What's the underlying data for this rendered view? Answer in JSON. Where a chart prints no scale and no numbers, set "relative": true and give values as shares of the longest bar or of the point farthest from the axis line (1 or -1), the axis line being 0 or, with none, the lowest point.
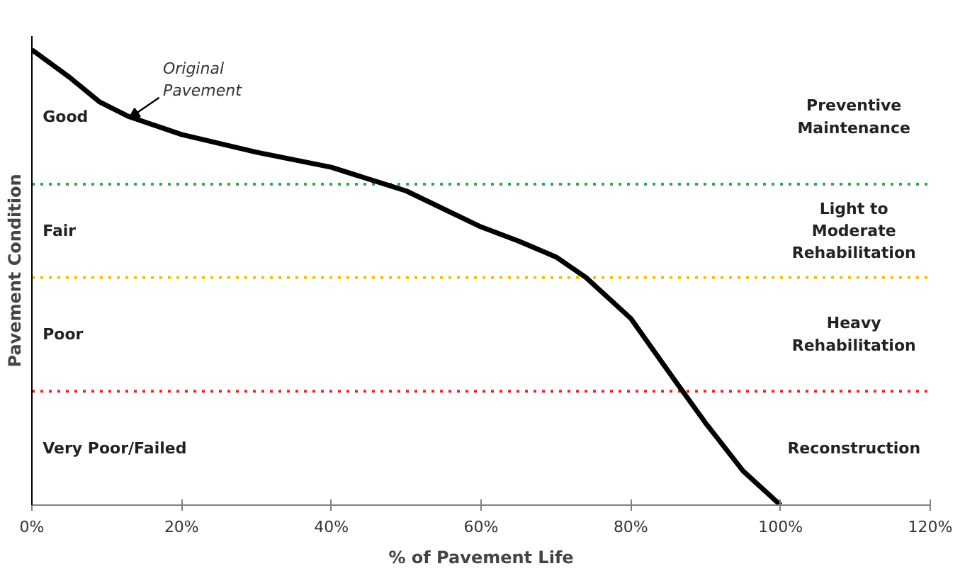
{
  "chart_data": {
    "type": "line",
    "relative": true,
    "xlabel": "% of Pavement Life",
    "ylabel": "Pavement Condition",
    "x": [
      0,
      5,
      9,
      13,
      20,
      30,
      40,
      50,
      60,
      65,
      70,
      74,
      80,
      86,
      90,
      95,
      100
    ],
    "series": [
      {
        "color": "#000000",
        "values": [
          1.0,
          0.94,
          0.886,
          0.853,
          0.814,
          0.775,
          0.742,
          0.69,
          0.611,
          0.58,
          0.545,
          0.5,
          0.41,
          0.271,
          0.18,
          0.075,
          0
        ]
      }
    ],
    "xlim": [
      0,
      120
    ],
    "xticks": [
      {
        "value": 0,
        "label": "0%"
      },
      {
        "value": 20,
        "label": "20%"
      },
      {
        "value": 40,
        "label": "40%"
      },
      {
        "value": 60,
        "label": "60%"
      },
      {
        "value": 80,
        "label": "80%"
      },
      {
        "value": 100,
        "label": "100%"
      },
      {
        "value": 120,
        "label": "120%"
      }
    ],
    "ref_lines": [
      {
        "axis": "y",
        "value": 0.705,
        "color": "#22b04c",
        "line_style": "dotted"
      },
      {
        "axis": "y",
        "value": 0.5,
        "color": "#f0c000",
        "line_style": "dotted"
      },
      {
        "axis": "y",
        "value": 0.25,
        "color": "#e8262b",
        "line_style": "dotted"
      }
    ],
    "annotations": [
      {
        "text": "Original\nPavement",
        "x": 13,
        "y": 0.85
      },
      "Good",
      "Preventive\nMaintenance",
      "Fair",
      "Light to\nModerate\nRehabilitation",
      "Poor",
      "Heavy\nRehabilitation",
      "Very Poor/Failed",
      "Reconstruction"
    ],
    "grid": false,
    "line_style": "solid",
    "marker": "none"
  }
}
